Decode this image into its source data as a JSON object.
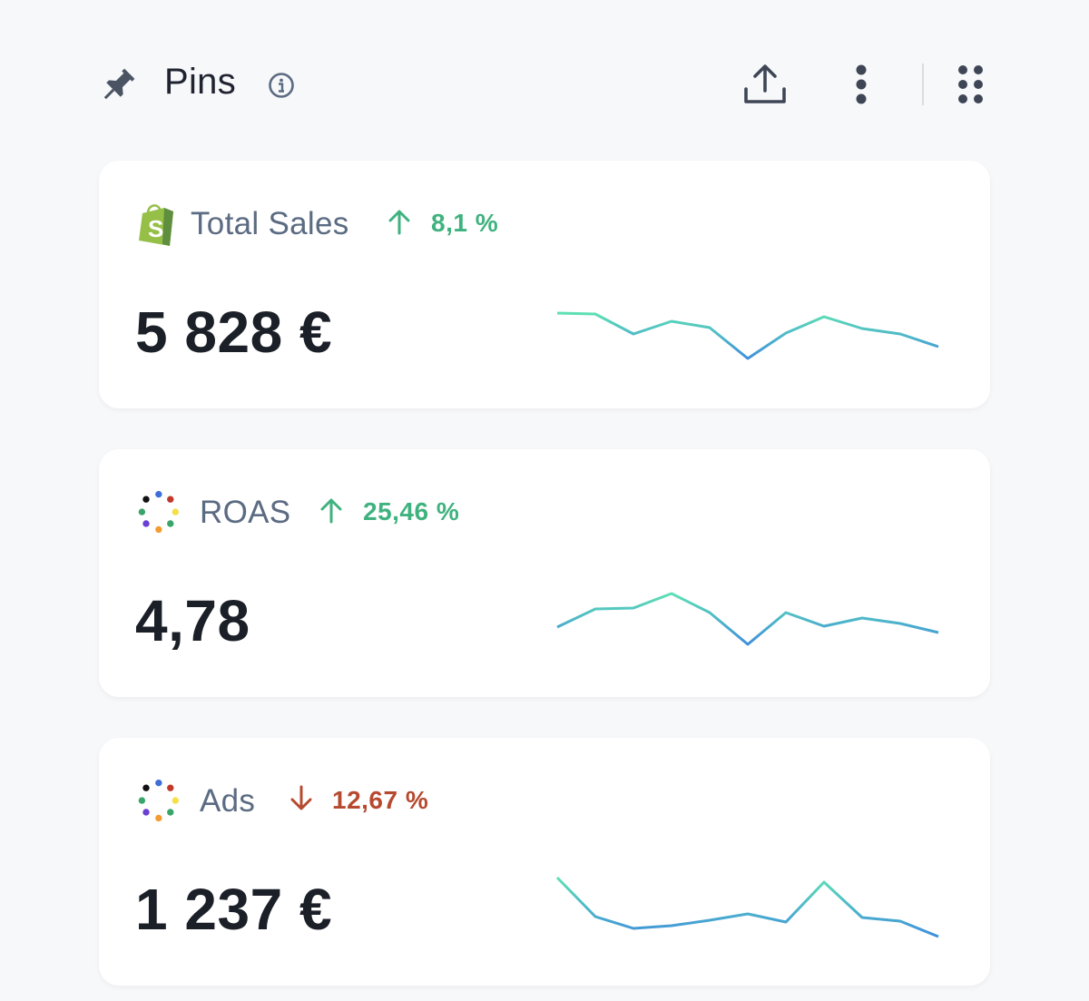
{
  "header": {
    "title": "Pins",
    "icons": [
      "pin-icon",
      "info-icon",
      "share-icon",
      "more-vertical-icon",
      "grid-icon"
    ]
  },
  "colors": {
    "up": "#3fb27f",
    "down": "#b64a30",
    "spark_start": "#5ee0b4",
    "spark_end": "#3f8fdc"
  },
  "cards": [
    {
      "label": "Total Sales",
      "source_icon": "shopify-icon",
      "trend": "up",
      "change": "8,1 %",
      "value": "5 828 €",
      "sparkline": [
        72,
        71,
        49,
        63,
        56,
        22,
        50,
        68,
        55,
        49,
        35
      ]
    },
    {
      "label": "ROAS",
      "source_icon": "ads-dots-icon",
      "trend": "up",
      "change": "25,46 %",
      "value": "4,78",
      "sparkline": [
        44,
        64,
        65,
        81,
        60,
        25,
        60,
        45,
        54,
        48,
        38
      ]
    },
    {
      "label": "Ads",
      "source_icon": "ads-dots-icon",
      "trend": "down",
      "change": "12,67 %",
      "value": "1 237 €",
      "sparkline": [
        86,
        43,
        30,
        33,
        39,
        46,
        37,
        81,
        42,
        38,
        21
      ]
    }
  ]
}
